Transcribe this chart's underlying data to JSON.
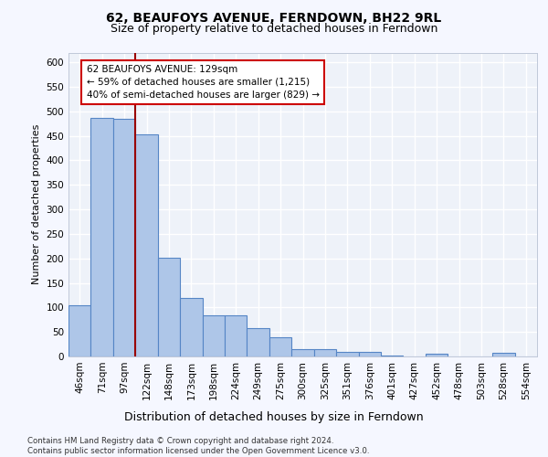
{
  "title": "62, BEAUFOYS AVENUE, FERNDOWN, BH22 9RL",
  "subtitle": "Size of property relative to detached houses in Ferndown",
  "xlabel": "Distribution of detached houses by size in Ferndown",
  "ylabel": "Number of detached properties",
  "categories": [
    "46sqm",
    "71sqm",
    "97sqm",
    "122sqm",
    "148sqm",
    "173sqm",
    "198sqm",
    "224sqm",
    "249sqm",
    "275sqm",
    "300sqm",
    "325sqm",
    "351sqm",
    "376sqm",
    "401sqm",
    "427sqm",
    "452sqm",
    "478sqm",
    "503sqm",
    "528sqm",
    "554sqm"
  ],
  "values": [
    105,
    487,
    485,
    454,
    202,
    120,
    83,
    83,
    57,
    40,
    15,
    14,
    10,
    10,
    1,
    0,
    6,
    0,
    0,
    7,
    0
  ],
  "bar_color": "#aec6e8",
  "bar_edge_color": "#5585c5",
  "vline_color": "#990000",
  "vline_x_idx": 2,
  "annotation_text": "62 BEAUFOYS AVENUE: 129sqm\n← 59% of detached houses are smaller (1,215)\n40% of semi-detached houses are larger (829) →",
  "annotation_box_facecolor": "#ffffff",
  "annotation_box_edgecolor": "#cc0000",
  "ylim": [
    0,
    620
  ],
  "yticks": [
    0,
    50,
    100,
    150,
    200,
    250,
    300,
    350,
    400,
    450,
    500,
    550,
    600
  ],
  "footer_text": "Contains HM Land Registry data © Crown copyright and database right 2024.\nContains public sector information licensed under the Open Government Licence v3.0.",
  "title_fontsize": 10,
  "subtitle_fontsize": 9,
  "xlabel_fontsize": 9,
  "ylabel_fontsize": 8,
  "tick_fontsize": 7.5,
  "annotation_fontsize": 7.5,
  "bg_color": "#eef2f9",
  "grid_color": "#ffffff",
  "fig_facecolor": "#f5f7ff"
}
